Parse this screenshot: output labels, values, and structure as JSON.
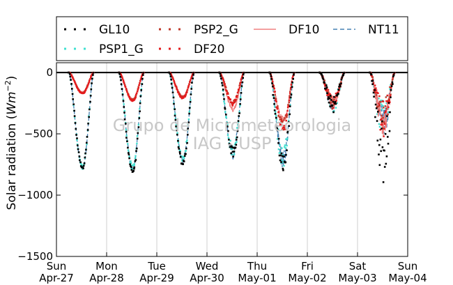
{
  "chart_data": {
    "type": "scatter",
    "title": "",
    "ylabel": "Solar radiation",
    "ylabel_unit_base": "W",
    "ylabel_unit_m": "m",
    "ylabel_unit_exp": "−2",
    "ylim": [
      -1500,
      80
    ],
    "yticks": [
      0,
      -500,
      -1000,
      -1500
    ],
    "ytick_labels": [
      "0",
      "−500",
      "−1000",
      "−1500"
    ],
    "xlim": [
      0,
      7
    ],
    "xticks": [
      {
        "x": 0,
        "day": "Sun",
        "date": "Apr-27"
      },
      {
        "x": 1,
        "day": "Mon",
        "date": "Apr-28"
      },
      {
        "x": 2,
        "day": "Tue",
        "date": "Apr-29"
      },
      {
        "x": 3,
        "day": "Wed",
        "date": "Apr-30"
      },
      {
        "x": 4,
        "day": "Thu",
        "date": "May-01"
      },
      {
        "x": 5,
        "day": "Fri",
        "date": "May-02"
      },
      {
        "x": 6,
        "day": "Sat",
        "date": "May-03"
      },
      {
        "x": 7,
        "day": "Sun",
        "date": "May-04"
      }
    ],
    "grid": "x",
    "legend_position": "top",
    "watermark": [
      "Grupo de Micrometeorologia",
      "IAG - USP"
    ],
    "series": [
      {
        "name": "GL10",
        "style": "dots",
        "color": "#000000",
        "daily_peak": [
          -790,
          -830,
          -770,
          -720,
          -830,
          -330,
          -920
        ]
      },
      {
        "name": "PSP1_G",
        "style": "dots",
        "color": "#40e0d0",
        "daily_peak": [
          -790,
          -800,
          -740,
          -700,
          -780,
          -320,
          -540
        ]
      },
      {
        "name": "PSP2_G",
        "style": "dots",
        "color": "#c0392b",
        "daily_peak": [
          -170,
          -230,
          -210,
          -260,
          -480,
          -300,
          -520
        ]
      },
      {
        "name": "DF10",
        "style": "line",
        "color": "#f08080",
        "daily_peak": [
          -160,
          -220,
          -200,
          -320,
          -440,
          -290,
          -560
        ]
      },
      {
        "name": "NT11",
        "style": "dashed",
        "color": "#4682b4",
        "daily_peak": [
          -795,
          -805,
          -745,
          -705,
          -785,
          -325,
          -545
        ]
      },
      {
        "name": "DF20",
        "style": "dots",
        "color": "#e41a1c",
        "daily_peak": [
          -175,
          -235,
          -215,
          -270,
          -490,
          -310,
          -530
        ]
      }
    ]
  }
}
